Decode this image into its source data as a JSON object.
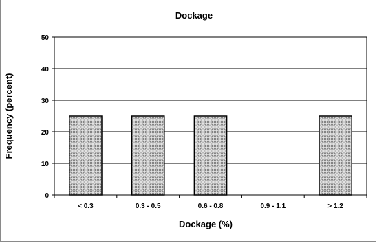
{
  "chart_data": {
    "type": "bar",
    "title": "Dockage",
    "xlabel": "Dockage (%)",
    "ylabel": "Frequency (percent)",
    "categories": [
      "< 0.3",
      "0.3 - 0.5",
      "0.6 - 0.8",
      "0.9 - 1.1",
      "> 1.2"
    ],
    "values": [
      25,
      25,
      25,
      0,
      25
    ],
    "ylim": [
      0,
      50
    ],
    "yticks": [
      0,
      10,
      20,
      30,
      40,
      50
    ],
    "grid": true,
    "legend": "none",
    "colors": {
      "bar_fill": "#d9d9d9",
      "bar_pattern": "#6e6e6e",
      "axis": "#000000",
      "grid": "#000000"
    }
  }
}
